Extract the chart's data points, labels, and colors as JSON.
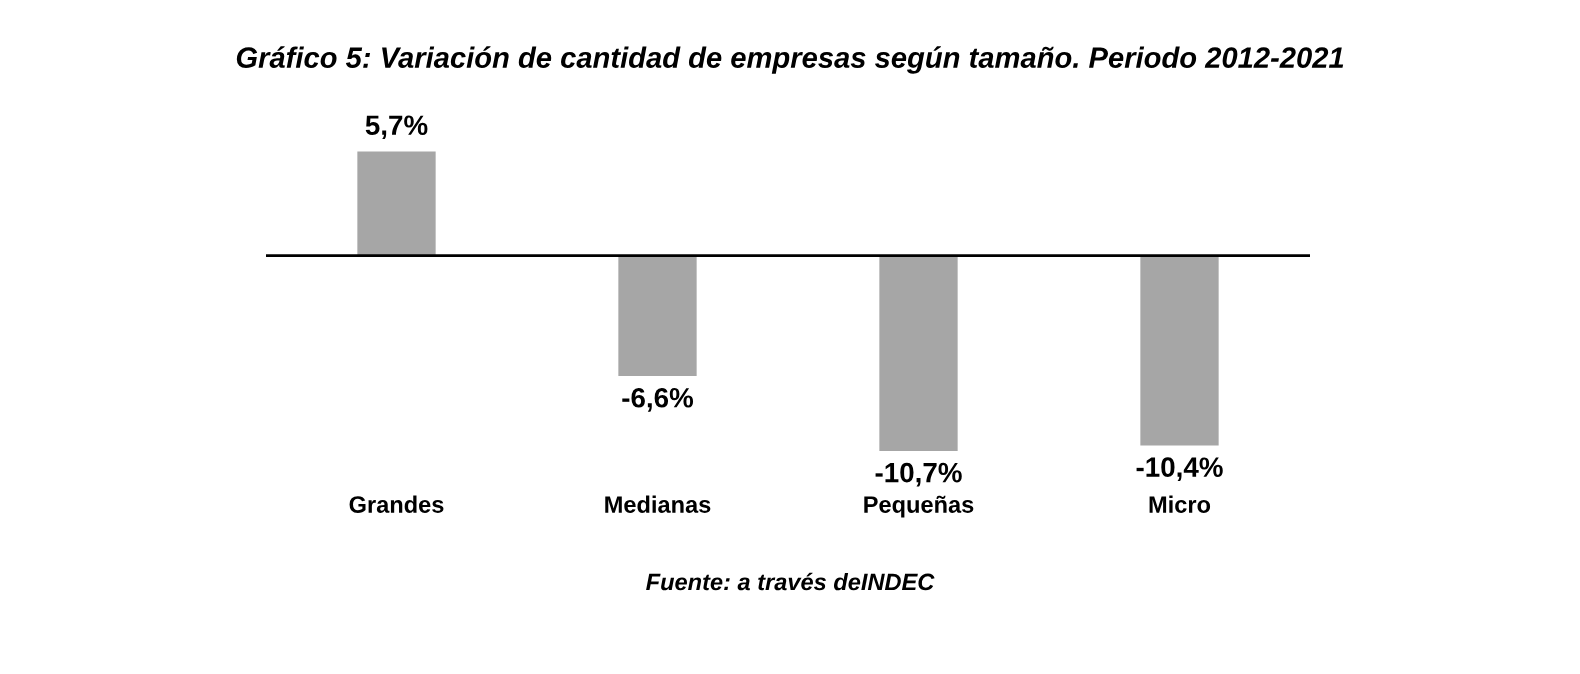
{
  "chart_data": {
    "type": "bar",
    "title": "Gráfico 5: Variación de cantidad de empresas según tamaño. Periodo 2012-2021",
    "categories": [
      "Grandes",
      "Medianas",
      "Pequeñas",
      "Micro"
    ],
    "values": [
      5.7,
      -6.6,
      -10.7,
      -10.4
    ],
    "value_labels": [
      "5,7%",
      "-6,6%",
      "-10,7%",
      "-10,4%"
    ],
    "color": "#a6a6a6",
    "grid": false,
    "legend": false,
    "annotations": [
      "Fuente: a través deINDEC"
    ]
  }
}
